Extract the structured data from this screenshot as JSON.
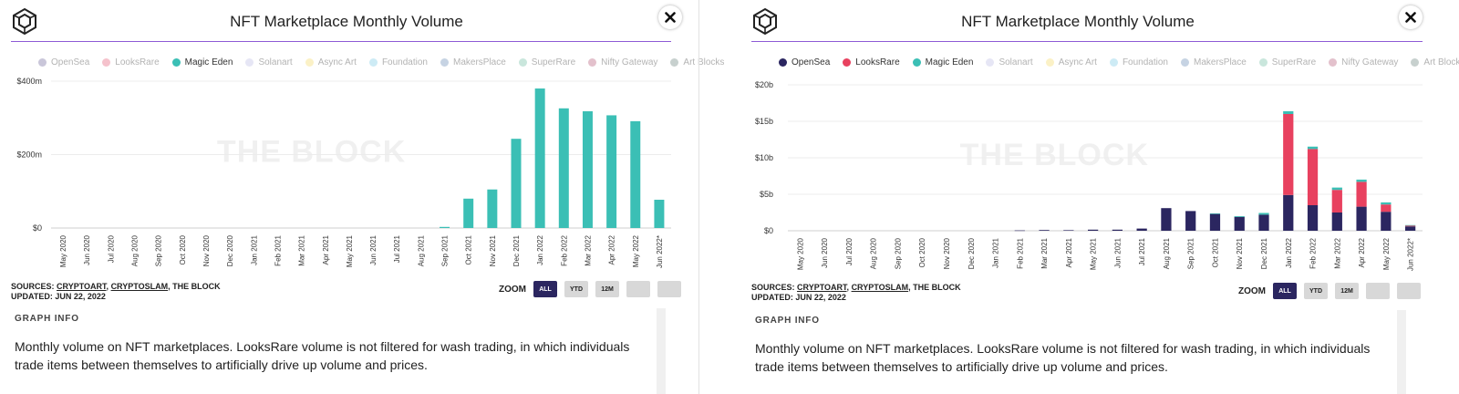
{
  "panels": [
    {
      "title": "NFT Marketplace Monthly Volume",
      "sources_label": "SOURCES:",
      "sources": [
        "CRYPTOART",
        "CRYPTOSLAM",
        "THE BLOCK"
      ],
      "updated": "UPDATED: JUN 22, 2022",
      "zoom_label": "ZOOM",
      "zoom_buttons": [
        "ALL",
        "YTD",
        "12M",
        "",
        ""
      ],
      "graph_info_title": "GRAPH INFO",
      "graph_info_text": "Monthly volume on NFT marketplaces. LooksRare volume is not filtered for wash trading, in which individuals trade items between themselves to artificially drive up volume and prices.",
      "watermark": "THE BLOCK",
      "legend": [
        {
          "name": "OpenSea",
          "color": "#c9c6d9",
          "active": false
        },
        {
          "name": "LooksRare",
          "color": "#f5c2cc",
          "active": false
        },
        {
          "name": "Magic Eden",
          "color": "#3bbfb5",
          "active": true
        },
        {
          "name": "Solanart",
          "color": "#e6e6f5",
          "active": false
        },
        {
          "name": "Async Art",
          "color": "#fbf1c6",
          "active": false
        },
        {
          "name": "Foundation",
          "color": "#cdebf5",
          "active": false
        },
        {
          "name": "MakersPlace",
          "color": "#c6d3e3",
          "active": false
        },
        {
          "name": "SuperRare",
          "color": "#c9e6dc",
          "active": false
        },
        {
          "name": "Nifty Gateway",
          "color": "#e3c1cc",
          "active": false
        },
        {
          "name": "Art Blocks",
          "color": "#c7d0ce",
          "active": false
        }
      ]
    },
    {
      "title": "NFT Marketplace Monthly Volume",
      "sources_label": "SOURCES:",
      "sources": [
        "CRYPTOART",
        "CRYPTOSLAM",
        "THE BLOCK"
      ],
      "updated": "UPDATED: JUN 22, 2022",
      "zoom_label": "ZOOM",
      "zoom_buttons": [
        "ALL",
        "YTD",
        "12M",
        "",
        ""
      ],
      "graph_info_title": "GRAPH INFO",
      "graph_info_text": "Monthly volume on NFT marketplaces. LooksRare volume is not filtered for wash trading, in which individuals trade items between themselves to artificially drive up volume and prices.",
      "watermark": "THE BLOCK",
      "legend": [
        {
          "name": "OpenSea",
          "color": "#2b2660",
          "active": true
        },
        {
          "name": "LooksRare",
          "color": "#e8415f",
          "active": true
        },
        {
          "name": "Magic Eden",
          "color": "#3bbfb5",
          "active": true
        },
        {
          "name": "Solanart",
          "color": "#e6e6f5",
          "active": false
        },
        {
          "name": "Async Art",
          "color": "#fbf1c6",
          "active": false
        },
        {
          "name": "Foundation",
          "color": "#cdebf5",
          "active": false
        },
        {
          "name": "MakersPlace",
          "color": "#c6d3e3",
          "active": false
        },
        {
          "name": "SuperRare",
          "color": "#c9e6dc",
          "active": false
        },
        {
          "name": "Nifty Gateway",
          "color": "#e3c1cc",
          "active": false
        },
        {
          "name": "Art Blocks",
          "color": "#c7d0ce",
          "active": false
        }
      ]
    }
  ],
  "chart_data": [
    {
      "type": "bar",
      "title": "NFT Marketplace Monthly Volume",
      "categories": [
        "May 2020",
        "Jun 2020",
        "Jul 2020",
        "Aug 2020",
        "Sep 2020",
        "Oct 2020",
        "Nov 2020",
        "Dec 2020",
        "Jan 2021",
        "Feb 2021",
        "Mar 2021",
        "Apr 2021",
        "May 2021",
        "Jun 2021",
        "Jul 2021",
        "Aug 2021",
        "Sep 2021",
        "Oct 2021",
        "Nov 2021",
        "Dec 2021",
        "Jan 2022",
        "Feb 2022",
        "Mar 2022",
        "Apr 2022",
        "May 2022",
        "Jun 2022*"
      ],
      "series": [
        {
          "name": "Magic Eden",
          "color": "#3bbfb5",
          "values": [
            0,
            0,
            0,
            0,
            0,
            0,
            0,
            0,
            0,
            0,
            0,
            0,
            0,
            0,
            0,
            0,
            3,
            80,
            105,
            243,
            380,
            326,
            318,
            307,
            291,
            77
          ]
        }
      ],
      "yticks": [
        "$0",
        "$200m",
        "$400m"
      ],
      "ylim": [
        0,
        400
      ],
      "grid": true,
      "legend_position": "top"
    },
    {
      "type": "bar",
      "stacked": true,
      "title": "NFT Marketplace Monthly Volume",
      "categories": [
        "May 2020",
        "Jun 2020",
        "Jul 2020",
        "Aug 2020",
        "Sep 2020",
        "Oct 2020",
        "Nov 2020",
        "Dec 2020",
        "Jan 2021",
        "Feb 2021",
        "Mar 2021",
        "Apr 2021",
        "May 2021",
        "Jun 2021",
        "Jul 2021",
        "Aug 2021",
        "Sep 2021",
        "Oct 2021",
        "Nov 2021",
        "Dec 2021",
        "Jan 2022",
        "Feb 2022",
        "Mar 2022",
        "Apr 2022",
        "May 2022",
        "Jun 2022*"
      ],
      "series": [
        {
          "name": "OpenSea",
          "color": "#2b2660",
          "values": [
            0,
            0,
            0,
            0,
            0,
            0,
            0,
            0,
            0,
            0.05,
            0.1,
            0.08,
            0.15,
            0.15,
            0.3,
            3.1,
            2.7,
            2.3,
            1.9,
            2.2,
            4.9,
            3.5,
            2.5,
            3.3,
            2.6,
            0.6
          ]
        },
        {
          "name": "LooksRare",
          "color": "#e8415f",
          "values": [
            0,
            0,
            0,
            0,
            0,
            0,
            0,
            0,
            0,
            0,
            0,
            0,
            0,
            0,
            0,
            0,
            0,
            0,
            0,
            0,
            11.1,
            7.7,
            3.1,
            3.4,
            1.0,
            0.1
          ]
        },
        {
          "name": "Magic Eden",
          "color": "#3bbfb5",
          "values": [
            0,
            0,
            0,
            0,
            0,
            0,
            0,
            0,
            0,
            0,
            0,
            0,
            0,
            0,
            0,
            0,
            0,
            0.08,
            0.1,
            0.24,
            0.38,
            0.33,
            0.32,
            0.31,
            0.29,
            0.08
          ]
        }
      ],
      "yticks": [
        "$0",
        "$5b",
        "$10b",
        "$15b",
        "$20b"
      ],
      "ylim": [
        0,
        20
      ],
      "grid": true,
      "legend_position": "top"
    }
  ]
}
